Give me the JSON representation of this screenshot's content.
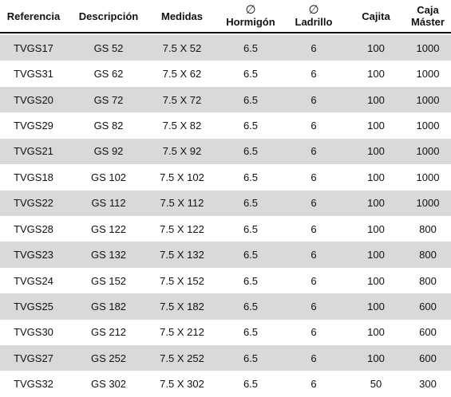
{
  "table": {
    "headers": {
      "referencia": "Referencia",
      "descripcion": "Descripción",
      "medidas": "Medidas",
      "hormigon_symbol": "∅",
      "hormigon": "Hormigón",
      "ladrillo_symbol": "∅",
      "ladrillo": "Ladrillo",
      "cajita": "Cajita",
      "caja_line1": "Caja",
      "caja_line2": "Máster"
    },
    "rows": [
      [
        "TVGS17",
        "GS 52",
        "7.5 X 52",
        "6.5",
        "6",
        "100",
        "1000"
      ],
      [
        "TVGS31",
        "GS 62",
        "7.5 X 62",
        "6.5",
        "6",
        "100",
        "1000"
      ],
      [
        "TVGS20",
        "GS 72",
        "7.5 X 72",
        "6.5",
        "6",
        "100",
        "1000"
      ],
      [
        "TVGS29",
        "GS 82",
        "7.5 X 82",
        "6.5",
        "6",
        "100",
        "1000"
      ],
      [
        "TVGS21",
        "GS 92",
        "7.5 X 92",
        "6.5",
        "6",
        "100",
        "1000"
      ],
      [
        "TVGS18",
        "GS 102",
        "7.5 X 102",
        "6.5",
        "6",
        "100",
        "1000"
      ],
      [
        "TVGS22",
        "GS 112",
        "7.5 X 112",
        "6.5",
        "6",
        "100",
        "1000"
      ],
      [
        "TVGS28",
        "GS 122",
        "7.5 X 122",
        "6.5",
        "6",
        "100",
        "800"
      ],
      [
        "TVGS23",
        "GS 132",
        "7.5 X 132",
        "6.5",
        "6",
        "100",
        "800"
      ],
      [
        "TVGS24",
        "GS 152",
        "7.5 X 152",
        "6.5",
        "6",
        "100",
        "800"
      ],
      [
        "TVGS25",
        "GS 182",
        "7.5 X 182",
        "6.5",
        "6",
        "100",
        "600"
      ],
      [
        "TVGS30",
        "GS 212",
        "7.5 X 212",
        "6.5",
        "6",
        "100",
        "600"
      ],
      [
        "TVGS27",
        "GS 252",
        "7.5 X 252",
        "6.5",
        "6",
        "100",
        "600"
      ],
      [
        "TVGS32",
        "GS 302",
        "7.5 X 302",
        "6.5",
        "6",
        "50",
        "300"
      ]
    ]
  },
  "colors": {
    "shaded_row": "#d9d9d9",
    "text": "#111111"
  }
}
